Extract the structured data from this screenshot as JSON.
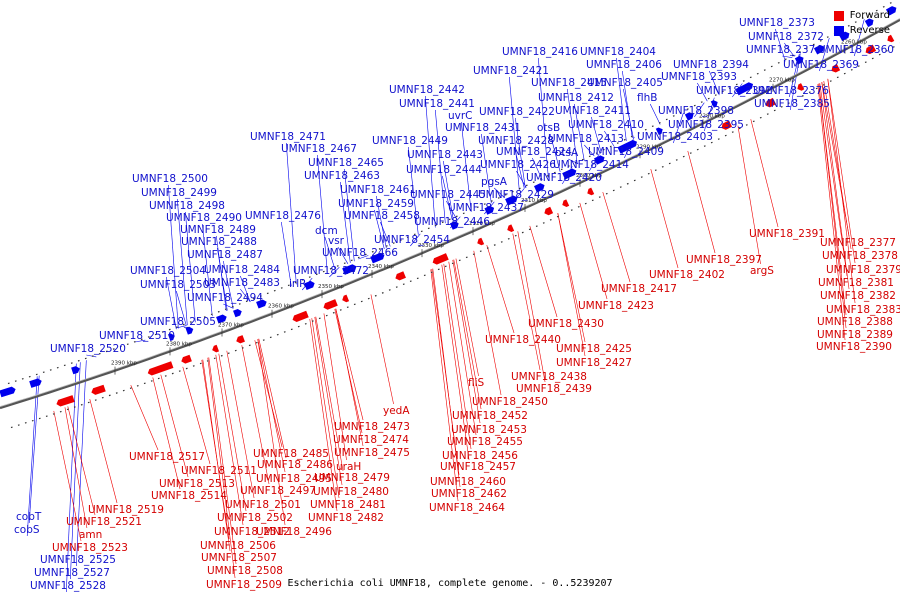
{
  "caption": "Escherichia coli UMNF18, complete genome. - 0..5239207",
  "legend": {
    "forward_label": "Forward",
    "reverse_label": "Reverse",
    "forward_color": "#ee0000",
    "reverse_color": "#0000ee"
  },
  "tick_labels": [
    "2260 kbp",
    "2270 kbp",
    "2280 kbp",
    "2290 kbp",
    "2300 kbp",
    "2310 kbp",
    "2320 kbp",
    "2330 kbp",
    "2340 kbp",
    "2350 kbp",
    "2360 kbp",
    "2370 kbp",
    "2380 kbp",
    "2390 kbp"
  ],
  "reverse_labels": [
    "UMNF18_2373",
    "UMNF18_2372",
    "UMNF18_2374",
    "UMNF18_2360",
    "UMNF18_2416",
    "UMNF18_2404",
    "UMNF18_2421",
    "UMNF18_2406",
    "UMNF18_2394",
    "UMNF18_2415",
    "UMNF18_2405",
    "UMNF18_2393",
    "UMNF18_2369",
    "UMNF18_2412",
    "flhB",
    "UMNF18_2392",
    "UMNF18_2376",
    "UMNF18_2442",
    "UMNF18_2441",
    "UMNF18_2422",
    "UMNF18_2411",
    "UMNF18_2398",
    "UMNF18_2385",
    "uvrC",
    "otsB",
    "UMNF18_2410",
    "UMNF18_2395",
    "UMNF18_2431",
    "UMNF18_2471",
    "UMNF18_2428",
    "UMNF18_2413",
    "UMNF18_2403",
    "UMNF18_2449",
    "UMNF18_2467",
    "UMNF18_2424",
    "otsA",
    "UMNF18_2409",
    "UMNF18_2443",
    "UMNF18_2465",
    "UMNF18_2426",
    "UMNF18_2414",
    "UMNF18_2444",
    "UMNF18_2500",
    "UMNF18_2463",
    "pgsA",
    "UMNF18_2420",
    "UMNF18_2499",
    "UMNF18_2461",
    "UMNF18_2445",
    "UMNF18_2429",
    "UMNF18_2498",
    "UMNF18_2459",
    "UMNF18_2437",
    "UMNF18_2490",
    "UMNF18_2476",
    "UMNF18_2458",
    "UMNF18_2446",
    "dcm",
    "UMNF18_2489",
    "vsr",
    "UMNF18_2454",
    "UMNF18_2488",
    "UMNF18_2466",
    "UMNF18_2487",
    "UMNF18_2504",
    "UMNF18_2484",
    "UMNF18_2472",
    "UMNF18_2503",
    "UMNF18_2483",
    "irlR",
    "UMNF18_2494",
    "UMNF18_2505",
    "UMNF18_2510",
    "UMNF18_2520",
    "cobT",
    "cobS",
    "UMNF18_2525",
    "UMNF18_2527",
    "UMNF18_2528"
  ],
  "forward_labels": [
    "UMNF18_2391",
    "UMNF18_2377",
    "UMNF18_2378",
    "UMNF18_2397",
    "UMNF18_2379",
    "UMNF18_2402",
    "argS",
    "UMNF18_2381",
    "UMNF18_2417",
    "UMNF18_2382",
    "UMNF18_2423",
    "UMNF18_2383",
    "UMNF18_2388",
    "UMNF18_2430",
    "UMNF18_2389",
    "UMNF18_2440",
    "UMNF18_2390",
    "UMNF18_2425",
    "UMNF18_2427",
    "UMNF18_2438",
    "fliS",
    "UMNF18_2439",
    "UMNF18_2450",
    "yedA",
    "UMNF18_2452",
    "UMNF18_2473",
    "UMNF18_2453",
    "UMNF18_2474",
    "UMNF18_2455",
    "UMNF18_2475",
    "UMNF18_2456",
    "UMNF18_2517",
    "UMNF18_2485",
    "uraH",
    "UMNF18_2457",
    "UMNF18_2486",
    "UMNF18_2511",
    "UMNF18_2495",
    "UMNF18_2479",
    "UMNF18_2460",
    "UMNF18_2513",
    "UMNF18_2497",
    "UMNF18_2480",
    "UMNF18_2462",
    "UMNF18_2514",
    "UMNF18_2501",
    "UMNF18_2481",
    "UMNF18_2464",
    "UMNF18_2519",
    "UMNF18_2502",
    "UMNF18_2482",
    "UMNF18_2521",
    "UMNF18_2512",
    "UMNF18_2496",
    "amn",
    "UMNF18_2523",
    "UMNF18_2506",
    "UMNF18_2507",
    "UMNF18_2508",
    "UMNF18_2509"
  ]
}
